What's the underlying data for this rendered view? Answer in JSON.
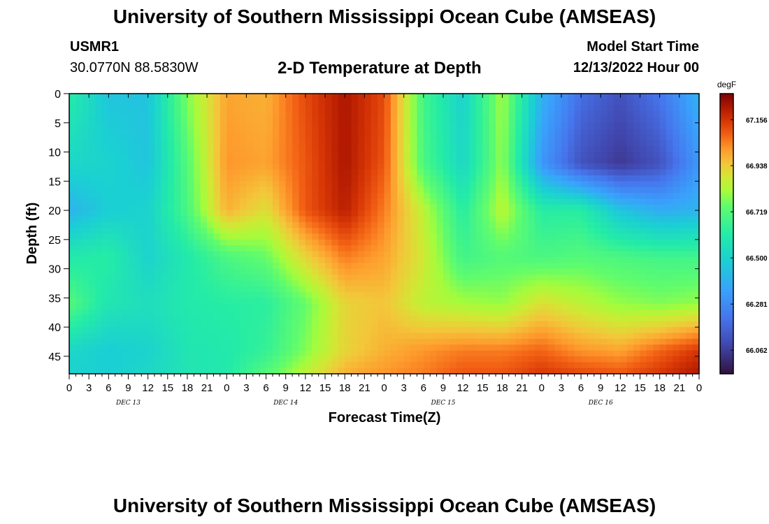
{
  "header": {
    "title": "University of Southern Mississippi Ocean Cube (AMSEAS)",
    "station": "USMR1",
    "location": "30.0770N  88.5830W",
    "subtitle": "2-D Temperature at Depth",
    "model_start_label": "Model Start Time",
    "model_start_value": "12/13/2022 Hour 00"
  },
  "footer": {
    "title": "University of Southern Mississippi Ocean Cube (AMSEAS)"
  },
  "chart_data": {
    "type": "heatmap",
    "title": "2-D Temperature at Depth",
    "xlabel": "Forecast Time(Z)",
    "ylabel": "Depth (ft)",
    "x_ticks": [
      "0",
      "3",
      "6",
      "9",
      "12",
      "15",
      "18",
      "21",
      "0",
      "3",
      "6",
      "9",
      "12",
      "15",
      "18",
      "21",
      "0",
      "3",
      "6",
      "9",
      "12",
      "15",
      "18",
      "21",
      "0",
      "3",
      "6",
      "9",
      "12",
      "15",
      "18",
      "21",
      "0"
    ],
    "date_labels": [
      {
        "label": "DEC 13",
        "hour": 9
      },
      {
        "label": "DEC 14",
        "hour": 33
      },
      {
        "label": "DEC 15",
        "hour": 57
      },
      {
        "label": "DEC 16",
        "hour": 81
      }
    ],
    "xlim": [
      0,
      96
    ],
    "y_ticks": [
      "0",
      "5",
      "10",
      "15",
      "20",
      "25",
      "30",
      "35",
      "40",
      "45"
    ],
    "ylim": [
      0,
      48
    ],
    "colorbar": {
      "units": "degF",
      "tick_labels": [
        "67.156",
        "66.938",
        "66.719",
        "66.500",
        "66.281",
        "66.062"
      ],
      "tick_values": [
        67.156,
        66.938,
        66.719,
        66.5,
        66.281,
        66.062
      ],
      "range": [
        65.95,
        67.28
      ]
    },
    "field": {
      "hours": [
        0,
        6,
        12,
        18,
        24,
        30,
        36,
        42,
        48,
        54,
        60,
        66,
        72,
        78,
        84,
        90,
        96
      ],
      "depths": [
        0,
        12,
        20,
        28,
        36,
        44,
        48
      ],
      "values_degF": [
        [
          66.62,
          66.45,
          66.45,
          66.78,
          67.0,
          66.98,
          67.12,
          67.22,
          67.12,
          66.68,
          66.5,
          66.82,
          66.4,
          66.2,
          66.12,
          66.22,
          66.4
        ],
        [
          66.52,
          66.5,
          66.45,
          66.72,
          67.02,
          67.0,
          67.1,
          67.22,
          67.1,
          66.7,
          66.52,
          66.8,
          66.32,
          66.12,
          66.05,
          66.12,
          66.32
        ],
        [
          66.4,
          66.48,
          66.5,
          66.7,
          66.98,
          66.9,
          67.1,
          67.2,
          67.05,
          66.85,
          66.62,
          66.85,
          66.62,
          66.62,
          66.45,
          66.38,
          66.4
        ],
        [
          66.6,
          66.62,
          66.5,
          66.6,
          66.7,
          66.75,
          66.92,
          67.05,
          67.0,
          66.88,
          66.68,
          66.72,
          66.7,
          66.72,
          66.7,
          66.68,
          66.68
        ],
        [
          66.72,
          66.58,
          66.55,
          66.6,
          66.62,
          66.63,
          66.75,
          66.92,
          66.95,
          66.85,
          66.82,
          66.8,
          66.9,
          66.85,
          66.8,
          66.78,
          66.8
        ],
        [
          66.52,
          66.48,
          66.5,
          66.58,
          66.6,
          66.65,
          66.78,
          66.92,
          66.98,
          67.02,
          67.05,
          67.05,
          67.08,
          67.02,
          67.0,
          67.08,
          67.15
        ],
        [
          66.5,
          66.48,
          66.52,
          66.58,
          66.6,
          66.72,
          66.85,
          66.98,
          67.02,
          67.05,
          67.1,
          67.1,
          67.15,
          67.12,
          67.1,
          67.15,
          67.22
        ]
      ]
    }
  }
}
